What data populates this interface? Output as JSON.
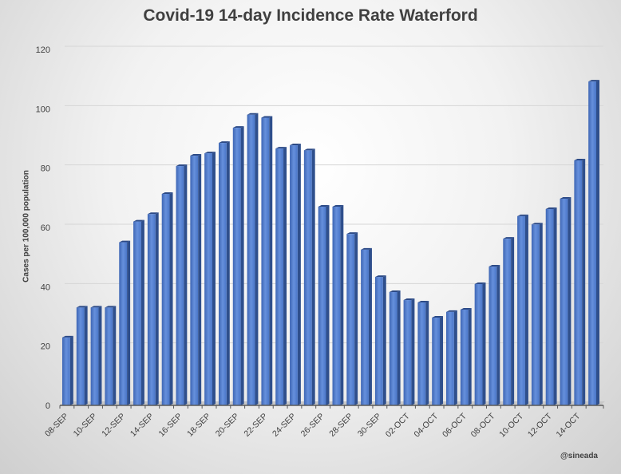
{
  "chart_data": {
    "type": "bar",
    "title": "Covid-19 14-day Incidence Rate Waterford",
    "xlabel": "",
    "ylabel": "Cases per 100,000 population",
    "ylim": [
      0,
      120
    ],
    "yticks": [
      0,
      20,
      40,
      60,
      80,
      100,
      120
    ],
    "grid": true,
    "style": "3d-column",
    "bar_color": "#4472c4",
    "categories": [
      "08-SEP",
      "09-SEP",
      "10-SEP",
      "11-SEP",
      "12-SEP",
      "13-SEP",
      "14-SEP",
      "15-SEP",
      "16-SEP",
      "17-SEP",
      "18-SEP",
      "19-SEP",
      "20-SEP",
      "21-SEP",
      "22-SEP",
      "23-SEP",
      "24-SEP",
      "25-SEP",
      "26-SEP",
      "27-SEP",
      "28-SEP",
      "29-SEP",
      "30-SEP",
      "01-OCT",
      "02-OCT",
      "03-OCT",
      "04-OCT",
      "05-OCT",
      "06-OCT",
      "07-OCT",
      "08-OCT",
      "09-OCT",
      "10-OCT",
      "11-OCT",
      "12-OCT",
      "13-OCT",
      "14-OCT",
      "15-OCT"
    ],
    "tick_labels": [
      "08-SEP",
      "10-SEP",
      "12-SEP",
      "14-SEP",
      "16-SEP",
      "18-SEP",
      "20-SEP",
      "22-SEP",
      "24-SEP",
      "26-SEP",
      "28-SEP",
      "30-SEP",
      "02-OCT",
      "04-OCT",
      "06-OCT",
      "08-OCT",
      "10-OCT",
      "12-OCT",
      "14-OCT"
    ],
    "values": [
      22.9,
      33.0,
      33.0,
      33.0,
      55.0,
      62.0,
      64.5,
      71.3,
      80.7,
      84.2,
      85.0,
      88.5,
      93.6,
      98.0,
      97.0,
      86.6,
      87.7,
      86.0,
      67.0,
      67.0,
      57.8,
      52.5,
      43.3,
      38.2,
      35.5,
      34.7,
      29.6,
      31.5,
      32.3,
      40.9,
      46.8,
      56.2,
      63.8,
      61.0,
      66.2,
      69.7,
      82.6,
      109.2
    ]
  },
  "credit": "@sineada"
}
